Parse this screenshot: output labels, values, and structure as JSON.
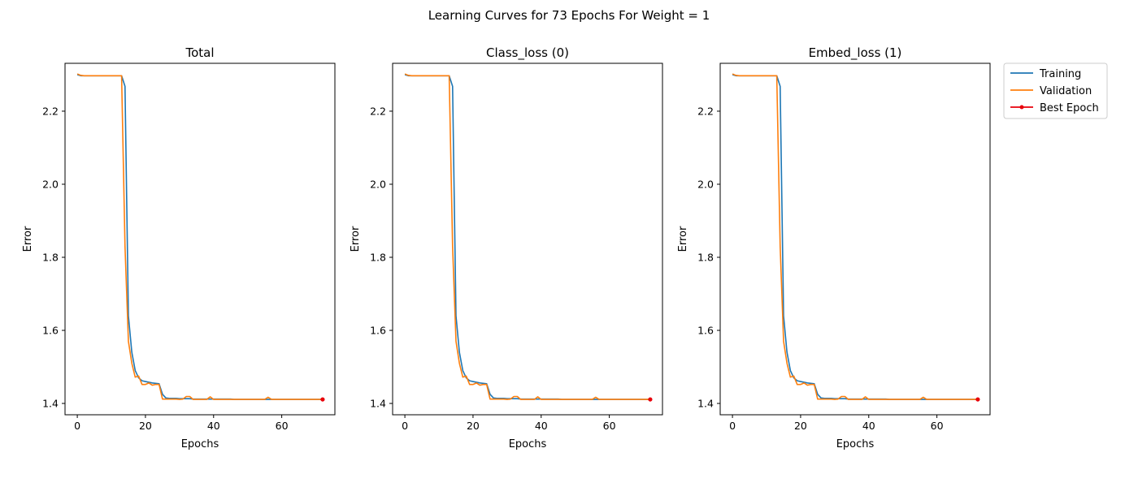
{
  "figure": {
    "title": "Learning Curves for 73 Epochs For Weight = 1",
    "legend": {
      "placement": "outside-right-top",
      "entries": [
        {
          "label": "Training",
          "color": "#1f77b4",
          "marker": "none"
        },
        {
          "label": "Validation",
          "color": "#ff7f0e",
          "marker": "none"
        },
        {
          "label": "Best Epoch",
          "color": "#e8000b",
          "marker": "circle"
        }
      ]
    }
  },
  "chart_data": [
    {
      "type": "line",
      "title": "Total",
      "xlabel": "Epochs",
      "ylabel": "Error",
      "xlim": [
        -3.6,
        75.6
      ],
      "ylim": [
        1.369,
        2.331
      ],
      "xticks": [
        0,
        20,
        40,
        60
      ],
      "yticks": [
        1.4,
        1.6,
        1.8,
        2.0,
        2.2
      ],
      "grid": false,
      "series": [
        {
          "name": "Training",
          "x_start": 0,
          "values": [
            2.3,
            2.297,
            2.297,
            2.297,
            2.297,
            2.297,
            2.297,
            2.297,
            2.297,
            2.297,
            2.297,
            2.297,
            2.297,
            2.297,
            2.268,
            1.64,
            1.54,
            1.49,
            1.47,
            1.462,
            1.46,
            1.458,
            1.456,
            1.455,
            1.454,
            1.425,
            1.415,
            1.414,
            1.414,
            1.414,
            1.413,
            1.413,
            1.413,
            1.413,
            1.412,
            1.412,
            1.412,
            1.412,
            1.412,
            1.412,
            1.412,
            1.412,
            1.412,
            1.412,
            1.412,
            1.412,
            1.411,
            1.411,
            1.411,
            1.411,
            1.411,
            1.411,
            1.411,
            1.411,
            1.411,
            1.411,
            1.411,
            1.411,
            1.411,
            1.411,
            1.411,
            1.411,
            1.411,
            1.411,
            1.411,
            1.411,
            1.411,
            1.411,
            1.411,
            1.411,
            1.411,
            1.411,
            1.411
          ]
        },
        {
          "name": "Validation",
          "x_start": 0,
          "values": [
            2.302,
            2.298,
            2.297,
            2.297,
            2.297,
            2.297,
            2.297,
            2.297,
            2.297,
            2.297,
            2.297,
            2.297,
            2.297,
            2.297,
            1.83,
            1.57,
            1.51,
            1.472,
            1.475,
            1.452,
            1.452,
            1.456,
            1.45,
            1.452,
            1.452,
            1.412,
            1.412,
            1.412,
            1.412,
            1.412,
            1.411,
            1.412,
            1.419,
            1.419,
            1.411,
            1.411,
            1.411,
            1.411,
            1.411,
            1.418,
            1.411,
            1.411,
            1.411,
            1.411,
            1.411,
            1.411,
            1.411,
            1.411,
            1.411,
            1.411,
            1.411,
            1.411,
            1.411,
            1.411,
            1.411,
            1.411,
            1.417,
            1.411,
            1.411,
            1.411,
            1.411,
            1.411,
            1.411,
            1.411,
            1.411,
            1.411,
            1.411,
            1.411,
            1.411,
            1.411,
            1.411,
            1.411,
            1.411
          ]
        },
        {
          "name": "Best Epoch",
          "points": [
            [
              72,
              1.411
            ]
          ]
        }
      ]
    },
    {
      "type": "line",
      "title": "Class_loss (0)",
      "xlabel": "Epochs",
      "ylabel": "Error",
      "xlim": [
        -3.6,
        75.6
      ],
      "ylim": [
        1.369,
        2.331
      ],
      "xticks": [
        0,
        20,
        40,
        60
      ],
      "yticks": [
        1.4,
        1.6,
        1.8,
        2.0,
        2.2
      ],
      "grid": false,
      "series": [
        {
          "name": "Training",
          "x_start": 0,
          "values": [
            2.3,
            2.297,
            2.297,
            2.297,
            2.297,
            2.297,
            2.297,
            2.297,
            2.297,
            2.297,
            2.297,
            2.297,
            2.297,
            2.297,
            2.268,
            1.64,
            1.54,
            1.49,
            1.47,
            1.462,
            1.46,
            1.458,
            1.456,
            1.455,
            1.454,
            1.425,
            1.415,
            1.414,
            1.414,
            1.414,
            1.413,
            1.413,
            1.413,
            1.413,
            1.412,
            1.412,
            1.412,
            1.412,
            1.412,
            1.412,
            1.412,
            1.412,
            1.412,
            1.412,
            1.412,
            1.412,
            1.411,
            1.411,
            1.411,
            1.411,
            1.411,
            1.411,
            1.411,
            1.411,
            1.411,
            1.411,
            1.411,
            1.411,
            1.411,
            1.411,
            1.411,
            1.411,
            1.411,
            1.411,
            1.411,
            1.411,
            1.411,
            1.411,
            1.411,
            1.411,
            1.411,
            1.411,
            1.411
          ]
        },
        {
          "name": "Validation",
          "x_start": 0,
          "values": [
            2.302,
            2.298,
            2.297,
            2.297,
            2.297,
            2.297,
            2.297,
            2.297,
            2.297,
            2.297,
            2.297,
            2.297,
            2.297,
            2.297,
            1.83,
            1.57,
            1.51,
            1.472,
            1.475,
            1.452,
            1.452,
            1.456,
            1.45,
            1.452,
            1.452,
            1.412,
            1.412,
            1.412,
            1.412,
            1.412,
            1.411,
            1.412,
            1.419,
            1.419,
            1.411,
            1.411,
            1.411,
            1.411,
            1.411,
            1.418,
            1.411,
            1.411,
            1.411,
            1.411,
            1.411,
            1.411,
            1.411,
            1.411,
            1.411,
            1.411,
            1.411,
            1.411,
            1.411,
            1.411,
            1.411,
            1.411,
            1.417,
            1.411,
            1.411,
            1.411,
            1.411,
            1.411,
            1.411,
            1.411,
            1.411,
            1.411,
            1.411,
            1.411,
            1.411,
            1.411,
            1.411,
            1.411,
            1.411
          ]
        },
        {
          "name": "Best Epoch",
          "points": [
            [
              72,
              1.411
            ]
          ]
        }
      ]
    },
    {
      "type": "line",
      "title": "Embed_loss (1)",
      "xlabel": "Epochs",
      "ylabel": "Error",
      "xlim": [
        -3.6,
        75.6
      ],
      "ylim": [
        1.369,
        2.331
      ],
      "xticks": [
        0,
        20,
        40,
        60
      ],
      "yticks": [
        1.4,
        1.6,
        1.8,
        2.0,
        2.2
      ],
      "grid": false,
      "series": [
        {
          "name": "Training",
          "x_start": 0,
          "values": [
            2.3,
            2.297,
            2.297,
            2.297,
            2.297,
            2.297,
            2.297,
            2.297,
            2.297,
            2.297,
            2.297,
            2.297,
            2.297,
            2.297,
            2.268,
            1.64,
            1.54,
            1.49,
            1.47,
            1.462,
            1.46,
            1.458,
            1.456,
            1.455,
            1.454,
            1.425,
            1.415,
            1.414,
            1.414,
            1.414,
            1.413,
            1.413,
            1.413,
            1.413,
            1.412,
            1.412,
            1.412,
            1.412,
            1.412,
            1.412,
            1.412,
            1.412,
            1.412,
            1.412,
            1.412,
            1.412,
            1.411,
            1.411,
            1.411,
            1.411,
            1.411,
            1.411,
            1.411,
            1.411,
            1.411,
            1.411,
            1.411,
            1.411,
            1.411,
            1.411,
            1.411,
            1.411,
            1.411,
            1.411,
            1.411,
            1.411,
            1.411,
            1.411,
            1.411,
            1.411,
            1.411,
            1.411,
            1.411
          ]
        },
        {
          "name": "Validation",
          "x_start": 0,
          "values": [
            2.302,
            2.298,
            2.297,
            2.297,
            2.297,
            2.297,
            2.297,
            2.297,
            2.297,
            2.297,
            2.297,
            2.297,
            2.297,
            2.297,
            1.83,
            1.57,
            1.51,
            1.472,
            1.475,
            1.452,
            1.452,
            1.456,
            1.45,
            1.452,
            1.452,
            1.412,
            1.412,
            1.412,
            1.412,
            1.412,
            1.411,
            1.412,
            1.419,
            1.419,
            1.411,
            1.411,
            1.411,
            1.411,
            1.411,
            1.418,
            1.411,
            1.411,
            1.411,
            1.411,
            1.411,
            1.411,
            1.411,
            1.411,
            1.411,
            1.411,
            1.411,
            1.411,
            1.411,
            1.411,
            1.411,
            1.411,
            1.417,
            1.411,
            1.411,
            1.411,
            1.411,
            1.411,
            1.411,
            1.411,
            1.411,
            1.411,
            1.411,
            1.411,
            1.411,
            1.411,
            1.411,
            1.411,
            1.411
          ]
        },
        {
          "name": "Best Epoch",
          "points": [
            [
              72,
              1.411
            ]
          ]
        }
      ]
    }
  ]
}
